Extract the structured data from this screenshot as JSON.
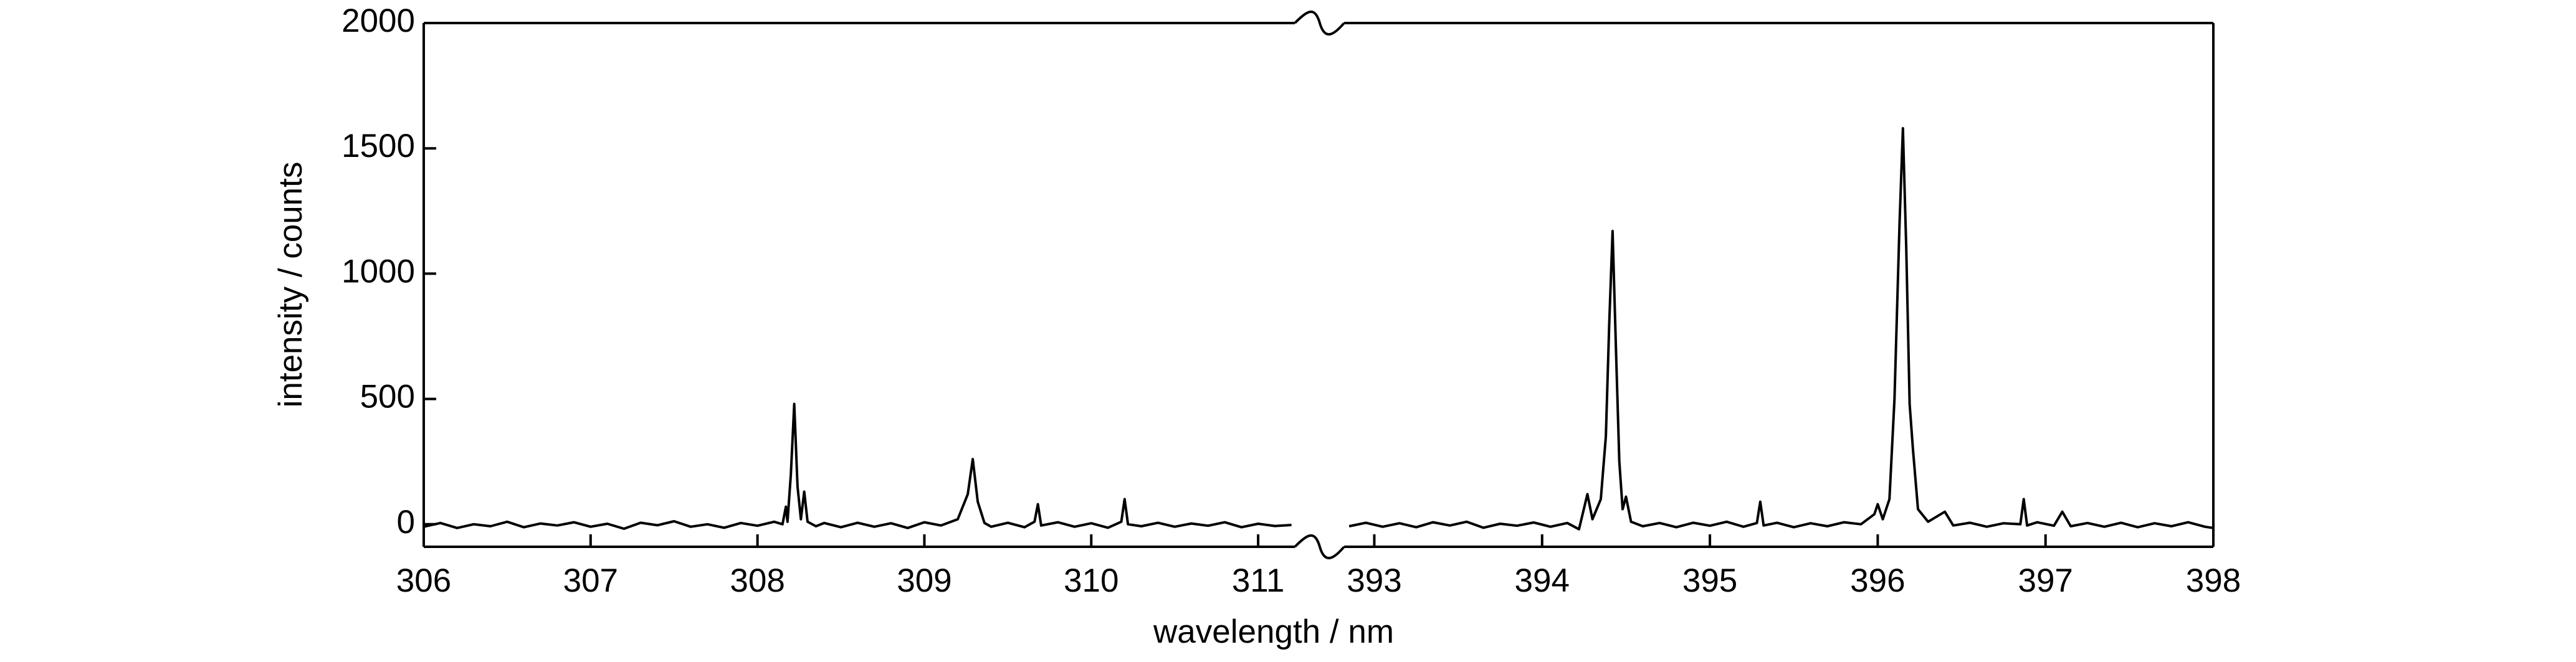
{
  "chart_data": [
    {
      "type": "line",
      "ylabel": "intensity / counts",
      "xlabel": "wavelength / nm",
      "xlim": [
        306,
        311.22
      ],
      "xticks": [
        306,
        307,
        308,
        309,
        310,
        311
      ],
      "ylim": [
        -90,
        2000
      ],
      "yticks": [
        0,
        500,
        1000,
        1500,
        2000
      ],
      "series": [
        {
          "color": "#000000",
          "x": [
            306.0,
            306.1,
            306.2,
            306.3,
            306.4,
            306.5,
            306.6,
            306.7,
            306.8,
            306.9,
            307.0,
            307.1,
            307.2,
            307.3,
            307.4,
            307.5,
            307.6,
            307.7,
            307.8,
            307.9,
            308.0,
            308.1,
            308.15,
            308.17,
            308.18,
            308.2,
            308.22,
            308.24,
            308.26,
            308.28,
            308.3,
            308.35,
            308.4,
            308.5,
            308.6,
            308.7,
            308.8,
            308.9,
            309.0,
            309.1,
            309.2,
            309.26,
            309.29,
            309.32,
            309.36,
            309.4,
            309.5,
            309.6,
            309.66,
            309.68,
            309.7,
            309.8,
            309.9,
            310.0,
            310.1,
            310.18,
            310.2,
            310.22,
            310.3,
            310.4,
            310.5,
            310.6,
            310.7,
            310.8,
            310.9,
            311.0,
            311.1,
            311.2
          ],
          "values": [
            -10,
            5,
            -15,
            0,
            -8,
            10,
            -12,
            3,
            -5,
            8,
            -10,
            2,
            -18,
            6,
            -4,
            12,
            -10,
            0,
            -14,
            5,
            -6,
            10,
            0,
            70,
            10,
            200,
            480,
            150,
            20,
            130,
            10,
            -8,
            5,
            -12,
            6,
            -10,
            4,
            -15,
            8,
            -5,
            20,
            120,
            260,
            90,
            5,
            -10,
            6,
            -12,
            10,
            80,
            -5,
            8,
            -10,
            4,
            -14,
            10,
            100,
            0,
            -8,
            6,
            -10,
            3,
            -6,
            8,
            -12,
            2,
            -7,
            -3
          ]
        }
      ]
    },
    {
      "type": "line",
      "xlim": [
        392.82,
        398
      ],
      "xticks": [
        393,
        394,
        395,
        396,
        397,
        398
      ],
      "ylim": [
        -90,
        2000
      ],
      "series": [
        {
          "color": "#000000",
          "x": [
            392.85,
            392.95,
            393.05,
            393.15,
            393.25,
            393.35,
            393.45,
            393.55,
            393.65,
            393.75,
            393.85,
            393.95,
            394.05,
            394.15,
            394.22,
            394.27,
            394.3,
            394.35,
            394.38,
            394.4,
            394.42,
            394.44,
            394.46,
            394.48,
            394.5,
            394.53,
            394.6,
            394.7,
            394.8,
            394.9,
            395.0,
            395.1,
            395.2,
            395.28,
            395.3,
            395.32,
            395.4,
            395.5,
            395.6,
            395.7,
            395.8,
            395.9,
            395.98,
            396.0,
            396.03,
            396.07,
            396.1,
            396.13,
            396.15,
            396.17,
            396.19,
            396.21,
            396.24,
            396.3,
            396.4,
            396.45,
            396.55,
            396.65,
            396.75,
            396.85,
            396.87,
            396.89,
            396.95,
            397.05,
            397.1,
            397.15,
            397.25,
            397.35,
            397.45,
            397.55,
            397.65,
            397.75,
            397.85,
            397.95,
            398.0
          ],
          "values": [
            -8,
            6,
            -10,
            4,
            -12,
            8,
            -5,
            10,
            -14,
            2,
            -6,
            7,
            -10,
            5,
            -20,
            120,
            20,
            100,
            350,
            800,
            1170,
            700,
            250,
            60,
            110,
            10,
            -8,
            5,
            -12,
            6,
            -6,
            10,
            -10,
            5,
            90,
            -5,
            6,
            -12,
            4,
            -8,
            8,
            0,
            40,
            80,
            20,
            100,
            500,
            1200,
            1580,
            1100,
            480,
            300,
            60,
            10,
            50,
            -5,
            6,
            -10,
            4,
            0,
            100,
            -5,
            8,
            -6,
            50,
            -8,
            5,
            -10,
            6,
            -12,
            4,
            -8,
            8,
            -10,
            -15
          ]
        }
      ]
    }
  ]
}
